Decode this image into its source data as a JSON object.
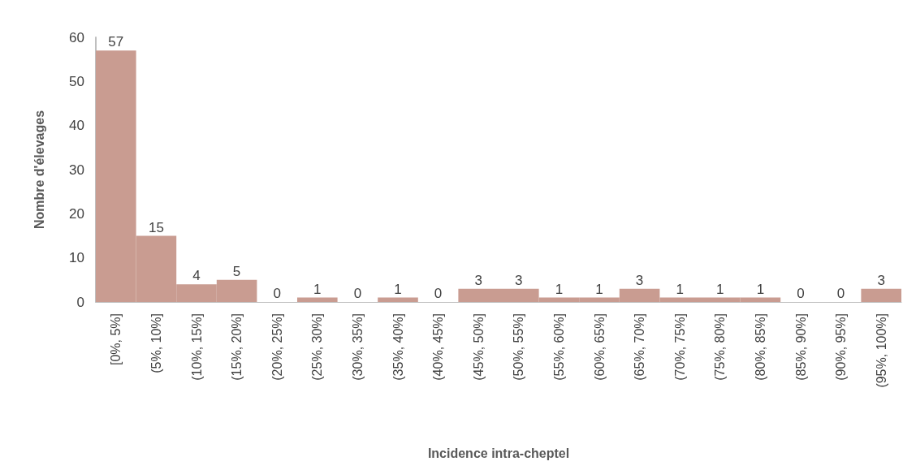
{
  "chart_data": {
    "type": "bar",
    "xlabel": "Incidence intra-cheptel",
    "ylabel": "Nombre d'élevages",
    "categories": [
      "[0%, 5%]",
      "(5%, 10%]",
      "(10%, 15%]",
      "(15%, 20%]",
      "(20%, 25%]",
      "(25%, 30%]",
      "(30%, 35%]",
      "(35%, 40%]",
      "(40%, 45%]",
      "(45%, 50%]",
      "(50%, 55%]",
      "(55%, 60%]",
      "(60%, 65%]",
      "(65%, 70%]",
      "(70%, 75%]",
      "(75%, 80%]",
      "(80%, 85%]",
      "(85%, 90%]",
      "(90%, 95%]",
      "(95%, 100%]"
    ],
    "values": [
      57,
      15,
      4,
      5,
      0,
      1,
      0,
      1,
      0,
      3,
      3,
      1,
      1,
      3,
      1,
      1,
      1,
      0,
      0,
      3
    ],
    "color": "#c99c91",
    "ylim": [
      0,
      60
    ],
    "yticks": [
      0,
      10,
      20,
      30,
      40,
      50,
      60
    ],
    "grid": false,
    "data_labels": true
  }
}
